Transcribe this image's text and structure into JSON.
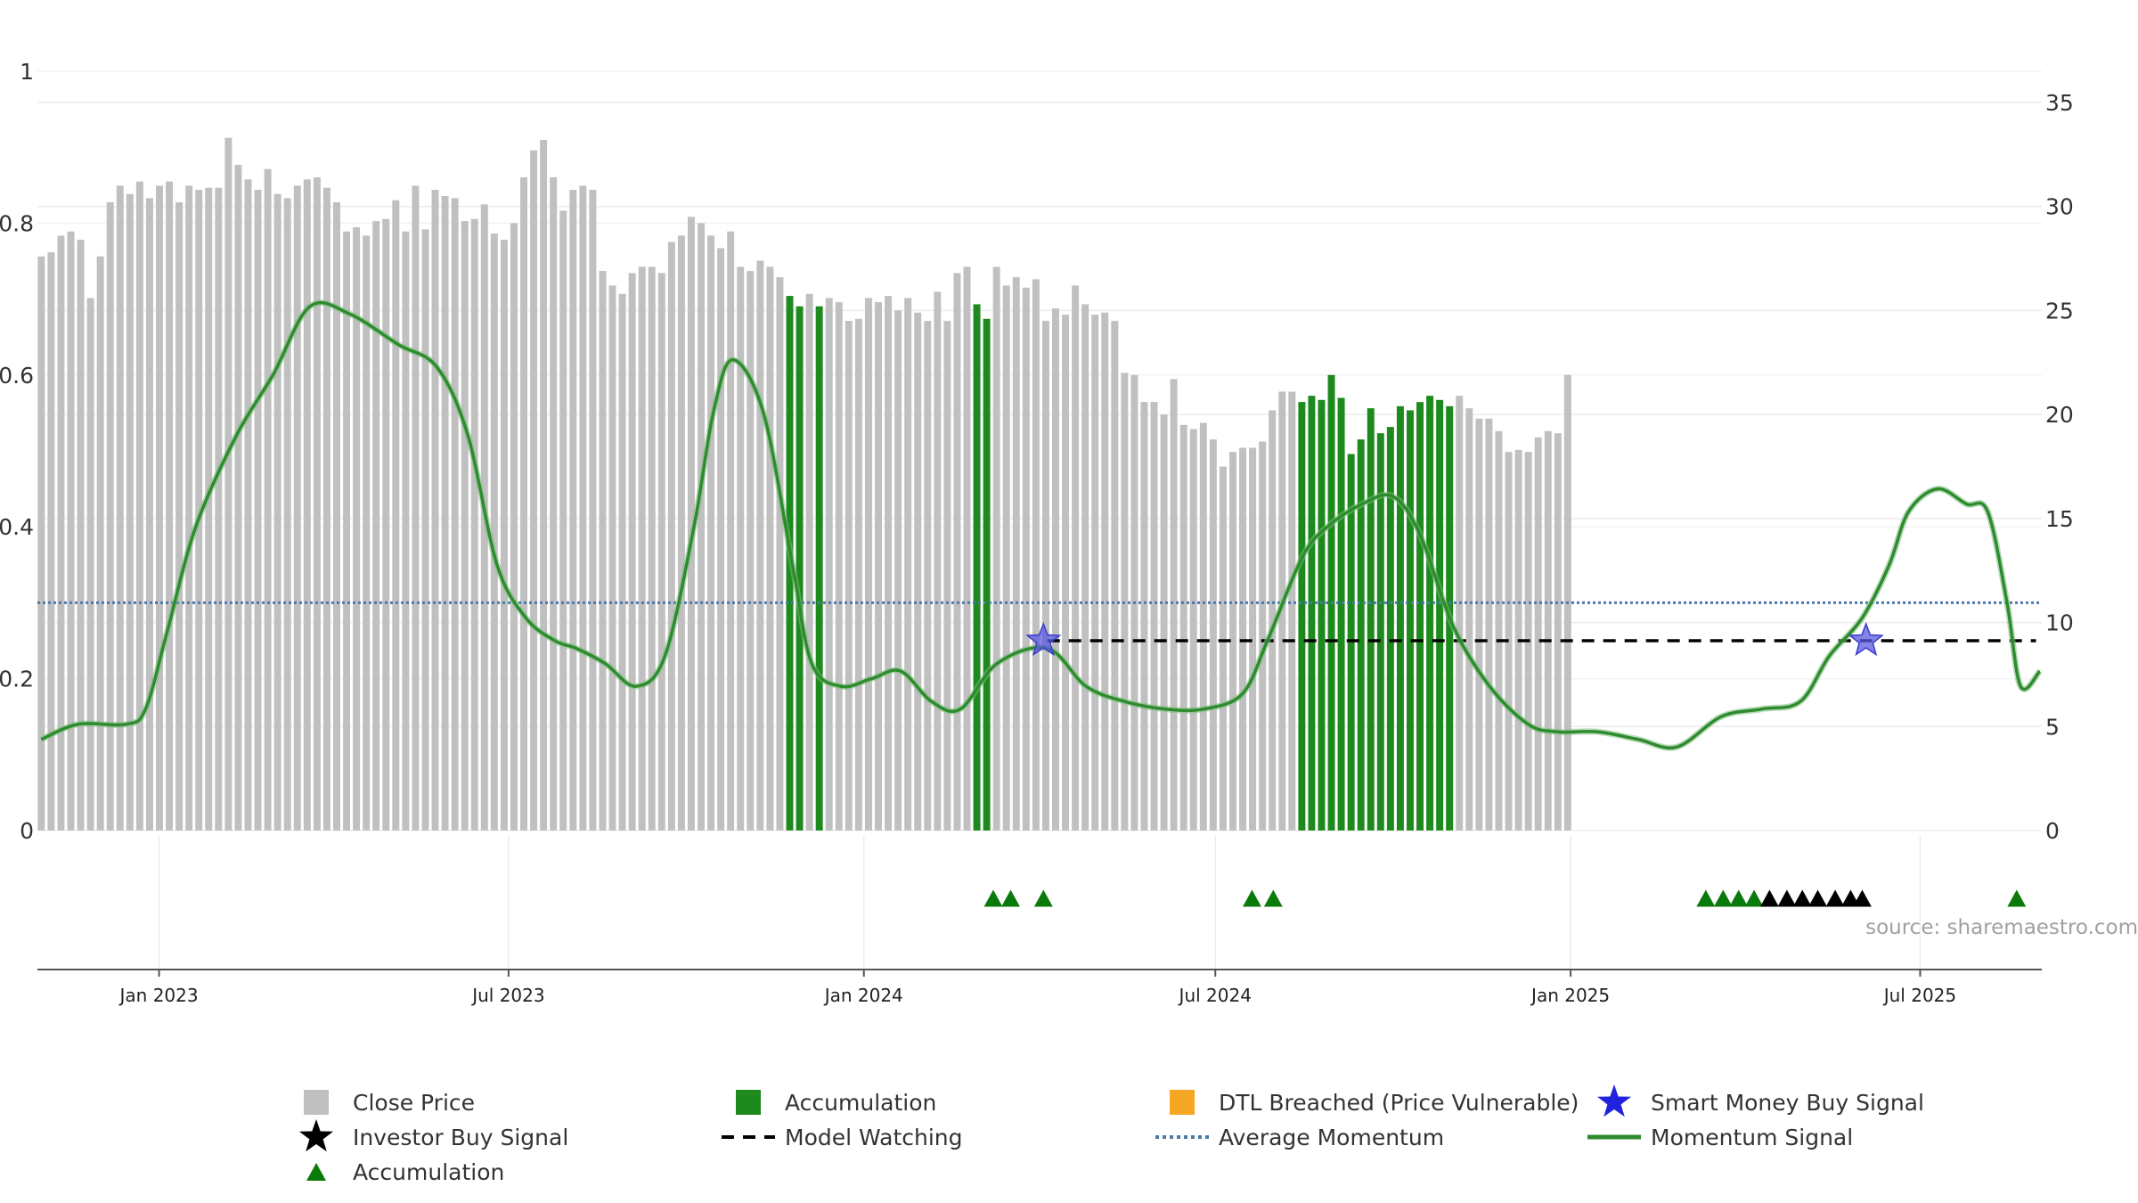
{
  "chart_data": {
    "type": "bar",
    "title": "",
    "source": "source: sharemaestro.com",
    "x_axis": {
      "ticks": [
        "Jan 2023",
        "Jul 2023",
        "Jan 2024",
        "Jul 2024",
        "Jan 2025",
        "Jul 2025"
      ],
      "tick_dates": [
        "2023-01-01",
        "2023-07-01",
        "2024-01-01",
        "2024-07-01",
        "2025-01-01",
        "2025-07-01"
      ],
      "range": [
        "2022-10-30",
        "2025-09-02"
      ],
      "grid": true
    },
    "left_axis": {
      "ticks": [
        "0",
        "0.2",
        "0.4",
        "0.6",
        "0.8",
        "1"
      ],
      "range": [
        0,
        1
      ]
    },
    "right_axis": {
      "ticks": [
        "0",
        "5",
        "10",
        "15",
        "20",
        "25",
        "30",
        "35"
      ],
      "range": [
        0,
        35
      ]
    },
    "colors": {
      "close": "#c0c0c0",
      "accumulation": "#1e8a1e",
      "dtl": "#f5a623",
      "smart_money": "#2222dd",
      "investor": "#000000",
      "model_watching": "#000000",
      "average_momentum": "#4a7aa8",
      "momentum": "#2e8b2e",
      "triangle": "#0a7a0a"
    },
    "close_price": {
      "start": "2022-11-01",
      "step_days": 5.1,
      "values": [
        27.6,
        27.8,
        28.6,
        28.8,
        28.4,
        25.6,
        27.6,
        30.2,
        31.0,
        30.6,
        31.2,
        30.4,
        31.0,
        31.2,
        30.2,
        31.0,
        30.8,
        30.9,
        30.9,
        33.3,
        32.0,
        31.3,
        30.8,
        31.8,
        30.6,
        30.4,
        31.0,
        31.3,
        31.4,
        30.9,
        30.2,
        28.8,
        29.0,
        28.6,
        29.3,
        29.4,
        30.3,
        28.8,
        31.0,
        28.9,
        30.8,
        30.5,
        30.4,
        29.3,
        29.4,
        30.1,
        28.7,
        28.4,
        29.2,
        31.4,
        32.7,
        33.2,
        31.4,
        29.8,
        30.8,
        31.0,
        30.8,
        26.9,
        26.2,
        25.8,
        26.8,
        27.1,
        27.1,
        26.8,
        28.3,
        28.6,
        29.5,
        29.2,
        28.6,
        28.0,
        28.8,
        27.1,
        26.9,
        27.4,
        27.1,
        26.6,
        25.7,
        25.2,
        25.8,
        25.2,
        25.6,
        25.4,
        24.5,
        24.6,
        25.6,
        25.4,
        25.7,
        25.0,
        25.6,
        24.9,
        24.5,
        25.9,
        24.5,
        26.8,
        27.1,
        25.3,
        24.6,
        27.1,
        26.2,
        26.6,
        26.1,
        26.5,
        24.5,
        25.1,
        24.8,
        26.2,
        25.3,
        24.8,
        24.9,
        24.5,
        22.0,
        21.9,
        20.6,
        20.6,
        20.0,
        21.7,
        19.5,
        19.3,
        19.6,
        18.8,
        17.5,
        18.2,
        18.4,
        18.4,
        18.7,
        20.2,
        21.1,
        21.1,
        20.6,
        20.9,
        20.7,
        21.9,
        20.8,
        18.1,
        18.8,
        20.3,
        19.1,
        19.4,
        20.4,
        20.2,
        20.6,
        20.9,
        20.7,
        20.4,
        20.9,
        20.3,
        19.8,
        19.8,
        19.2,
        18.2,
        18.3,
        18.2,
        18.9,
        19.2,
        19.1,
        21.9
      ]
    },
    "accumulation_bars": {
      "indices": [
        76,
        77,
        79,
        95,
        96,
        128,
        129,
        130,
        131,
        132,
        133,
        134,
        135,
        136,
        137,
        138,
        139,
        140,
        141,
        142,
        143,
        156
      ]
    },
    "momentum_signal": {
      "dates": [
        "2022-11-01",
        "2022-11-20",
        "2022-12-15",
        "2022-12-25",
        "2023-01-05",
        "2023-01-20",
        "2023-02-10",
        "2023-03-01",
        "2023-03-20",
        "2023-04-10",
        "2023-05-05",
        "2023-05-25",
        "2023-06-10",
        "2023-06-25",
        "2023-07-10",
        "2023-07-25",
        "2023-08-05",
        "2023-08-20",
        "2023-09-05",
        "2023-09-20",
        "2023-10-05",
        "2023-10-15",
        "2023-10-25",
        "2023-11-10",
        "2023-11-25",
        "2023-12-05",
        "2023-12-20",
        "2024-01-05",
        "2024-01-20",
        "2024-02-05",
        "2024-02-20",
        "2024-03-10",
        "2024-04-05",
        "2024-04-25",
        "2024-05-15",
        "2024-06-05",
        "2024-06-25",
        "2024-07-15",
        "2024-07-28",
        "2024-08-15",
        "2024-08-28",
        "2024-09-15",
        "2024-10-01",
        "2024-10-15",
        "2024-11-01",
        "2024-11-20",
        "2024-12-10",
        "2024-12-25",
        "2025-01-15",
        "2025-02-05",
        "2025-02-25",
        "2025-03-20",
        "2025-04-10",
        "2025-04-30",
        "2025-05-15",
        "2025-06-01",
        "2025-06-15",
        "2025-06-25",
        "2025-07-10",
        "2025-07-25",
        "2025-08-05",
        "2025-08-15",
        "2025-08-22",
        "2025-09-01"
      ],
      "values": [
        0.12,
        0.14,
        0.14,
        0.16,
        0.26,
        0.4,
        0.52,
        0.6,
        0.69,
        0.68,
        0.64,
        0.61,
        0.52,
        0.35,
        0.28,
        0.25,
        0.24,
        0.22,
        0.19,
        0.23,
        0.4,
        0.55,
        0.62,
        0.55,
        0.35,
        0.22,
        0.19,
        0.2,
        0.21,
        0.17,
        0.16,
        0.22,
        0.24,
        0.19,
        0.17,
        0.16,
        0.16,
        0.18,
        0.25,
        0.36,
        0.4,
        0.43,
        0.44,
        0.39,
        0.27,
        0.19,
        0.14,
        0.13,
        0.13,
        0.12,
        0.11,
        0.15,
        0.16,
        0.17,
        0.23,
        0.28,
        0.35,
        0.42,
        0.45,
        0.43,
        0.42,
        0.3,
        0.19,
        0.21
      ]
    },
    "average_momentum": 0.3,
    "model_watching": {
      "from": "2024-04-05",
      "to": "2025-08-30",
      "value": 0.25
    },
    "smart_money_buy_signals": [
      {
        "date": "2024-04-03",
        "value": 0.25
      },
      {
        "date": "2025-06-03",
        "value": 0.25
      }
    ],
    "accumulation_triangles": [
      "2024-03-08",
      "2024-03-17",
      "2024-04-03",
      "2024-07-20",
      "2024-07-31",
      "2025-03-12",
      "2025-03-21",
      "2025-03-29",
      "2025-04-06",
      "2025-08-20"
    ],
    "investor_buy_signals": [
      "2025-04-14",
      "2025-04-23",
      "2025-05-01",
      "2025-05-09",
      "2025-05-18",
      "2025-05-26",
      "2025-06-01"
    ],
    "legend": [
      {
        "label": "Close Price",
        "marker": "square",
        "color": "#c0c0c0"
      },
      {
        "label": "Accumulation",
        "marker": "square",
        "color": "#1e8a1e"
      },
      {
        "label": "DTL Breached (Price Vulnerable)",
        "marker": "square",
        "color": "#f5a623"
      },
      {
        "label": "Smart Money Buy Signal",
        "marker": "star",
        "color": "#2222dd"
      },
      {
        "label": "Investor Buy Signal",
        "marker": "star",
        "color": "#000000"
      },
      {
        "label": "Model Watching",
        "marker": "dash",
        "color": "#000000"
      },
      {
        "label": "Average Momentum",
        "marker": "dots",
        "color": "#4a7aa8"
      },
      {
        "label": "Momentum Signal",
        "marker": "line",
        "color": "#2e8b2e"
      },
      {
        "label": "Accumulation",
        "marker": "triangle",
        "color": "#0a7a0a"
      }
    ],
    "legend_placement": "bottom"
  }
}
